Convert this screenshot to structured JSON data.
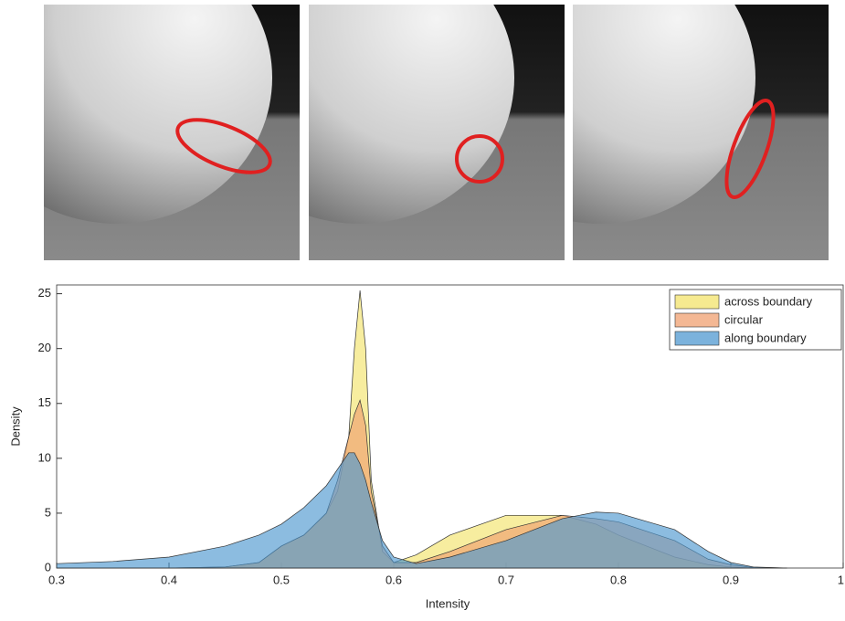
{
  "chart_data": {
    "type": "area",
    "x_label": "Intensity",
    "y_label": "Density",
    "x": [
      0.3,
      0.35,
      0.4,
      0.45,
      0.48,
      0.5,
      0.52,
      0.54,
      0.55,
      0.56,
      0.565,
      0.57,
      0.575,
      0.58,
      0.59,
      0.6,
      0.62,
      0.65,
      0.7,
      0.75,
      0.78,
      0.8,
      0.85,
      0.88,
      0.9,
      0.92,
      0.95
    ],
    "series": [
      {
        "name": "across boundary",
        "color": "#f3e36b",
        "values": [
          0,
          0,
          0,
          0.1,
          0.5,
          2,
          3,
          5,
          7,
          12,
          20,
          25.3,
          20,
          8,
          1.5,
          0.5,
          1.2,
          3,
          4.8,
          4.8,
          4.0,
          3,
          1,
          0.3,
          0.1,
          0,
          0
        ]
      },
      {
        "name": "circular",
        "color": "#f0a070",
        "values": [
          0,
          0,
          0,
          0.1,
          0.5,
          2,
          3,
          5,
          8,
          12,
          14,
          15.3,
          13,
          7,
          2,
          0.5,
          0.5,
          1.5,
          3.5,
          4.8,
          4.5,
          4.2,
          2.5,
          0.8,
          0.3,
          0.05,
          0
        ]
      },
      {
        "name": "along boundary",
        "color": "#4f98d0",
        "values": [
          0.4,
          0.6,
          1,
          2,
          3,
          4,
          5.5,
          7.5,
          9,
          10.5,
          10.5,
          9.5,
          8,
          6,
          2.5,
          1,
          0.4,
          1,
          2.5,
          4.5,
          5.1,
          5,
          3.5,
          1.5,
          0.5,
          0.1,
          0
        ]
      }
    ],
    "xlim": [
      0.3,
      1
    ],
    "xticks": [
      0.3,
      0.4,
      0.5,
      0.6,
      0.7,
      0.8,
      0.9,
      1
    ],
    "ylim": [
      0,
      25.8
    ],
    "yticks": [
      0,
      5,
      10,
      15,
      20,
      25
    ],
    "legend": "top-right"
  }
}
